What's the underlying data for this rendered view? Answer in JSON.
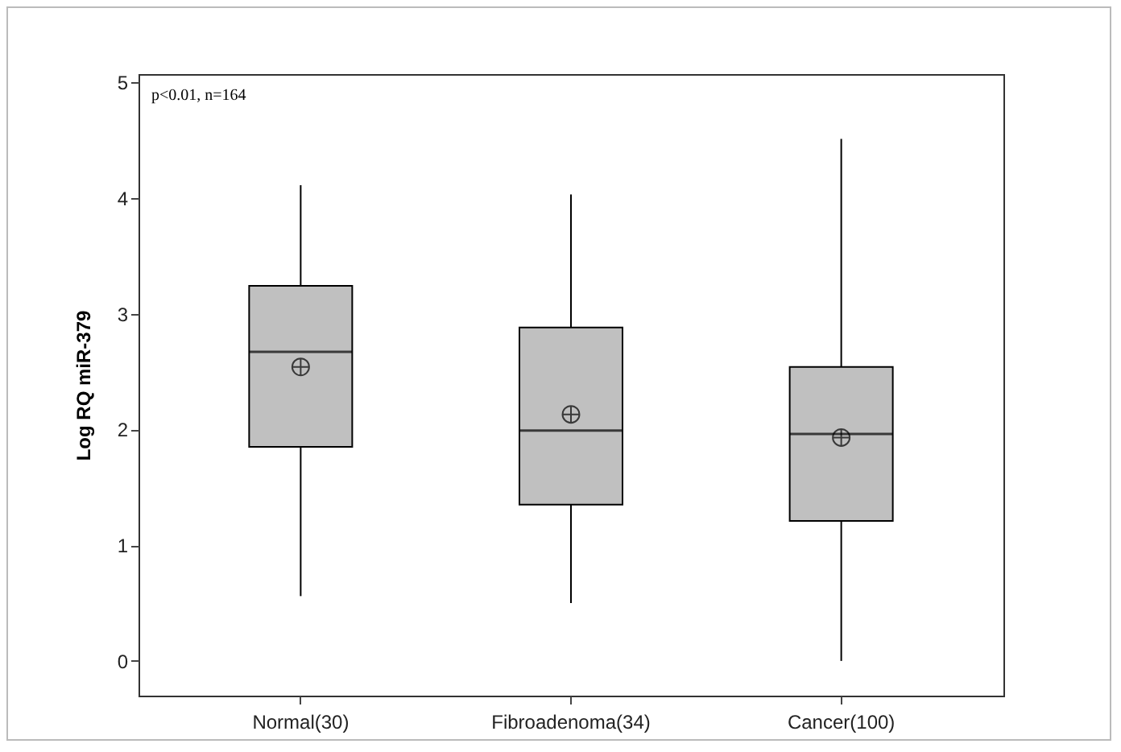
{
  "chart_data": {
    "type": "box",
    "ylabel": "Log RQ miR-379",
    "categories": [
      "Normal(30)",
      "Fibroadenoma(34)",
      "Cancer(100)"
    ],
    "boxes": [
      {
        "low": 0.56,
        "q1": 1.85,
        "median": 2.67,
        "q3": 3.24,
        "high": 4.11,
        "mean": 2.54
      },
      {
        "low": 0.5,
        "q1": 1.35,
        "median": 1.99,
        "q3": 2.88,
        "high": 4.03,
        "mean": 2.13
      },
      {
        "low": 0,
        "q1": 1.21,
        "median": 1.96,
        "q3": 2.54,
        "high": 4.51,
        "mean": 1.93
      }
    ],
    "color": "#c0c0c0",
    "ylim": [
      -0.3,
      5.07
    ],
    "yticks": [
      0,
      1,
      2,
      3,
      4,
      5
    ],
    "grid": false,
    "annotations": [
      "p<0.01, n=164"
    ]
  }
}
